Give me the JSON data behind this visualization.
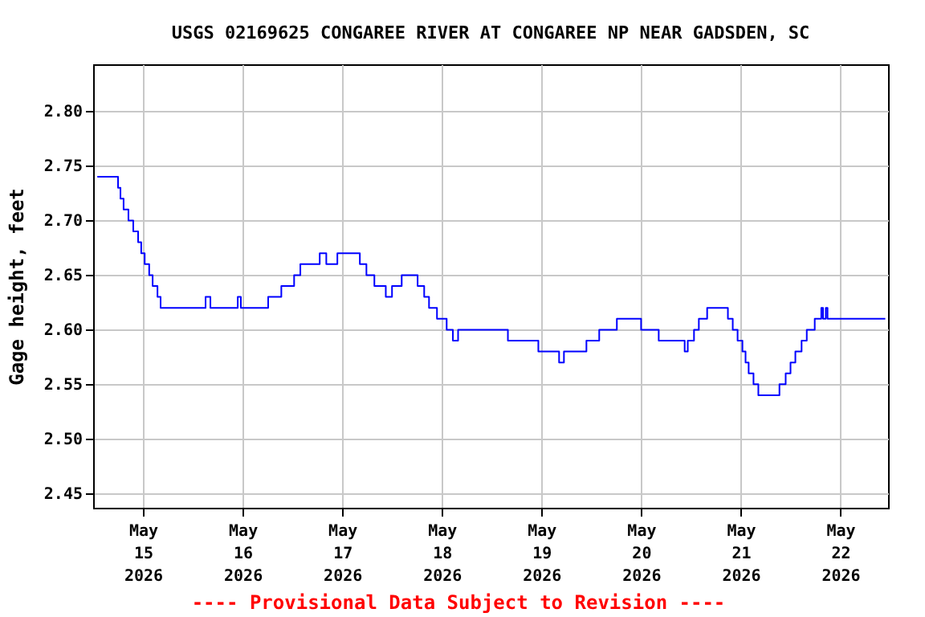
{
  "chart_data": {
    "type": "step",
    "title": "USGS 02169625 CONGAREE RIVER AT CONGAREE NP NEAR GADSDEN, SC",
    "ylabel": "Gage height, feet",
    "annotations": [
      "---- Provisional Data Subject to Revision ----"
    ],
    "x": [
      "2026-05-14T13:00",
      "2026-05-14T18:00",
      "2026-05-14T18:35",
      "2026-05-14T19:20",
      "2026-05-14T20:30",
      "2026-05-14T21:40",
      "2026-05-14T22:50",
      "2026-05-14T23:35",
      "2026-05-15T00:25",
      "2026-05-15T01:30",
      "2026-05-15T02:20",
      "2026-05-15T03:30",
      "2026-05-15T04:15",
      "2026-05-15T05:50",
      "2026-05-15T15:05",
      "2026-05-15T16:15",
      "2026-05-15T22:50",
      "2026-05-15T23:35",
      "2026-05-16T06:10",
      "2026-05-16T09:20",
      "2026-05-16T12:25",
      "2026-05-16T13:55",
      "2026-05-16T18:35",
      "2026-05-16T20:10",
      "2026-05-16T22:50",
      "2026-05-17T04:15",
      "2026-05-17T05:50",
      "2026-05-17T07:45",
      "2026-05-17T10:30",
      "2026-05-17T12:00",
      "2026-05-17T14:20",
      "2026-05-17T18:10",
      "2026-05-17T19:45",
      "2026-05-17T20:55",
      "2026-05-17T22:50",
      "2026-05-18T01:10",
      "2026-05-18T02:40",
      "2026-05-18T03:55",
      "2026-05-18T15:55",
      "2026-05-18T23:15",
      "2026-05-19T04:15",
      "2026-05-19T05:25",
      "2026-05-19T10:50",
      "2026-05-19T13:55",
      "2026-05-19T18:10",
      "2026-05-20T00:00",
      "2026-05-20T04:15",
      "2026-05-20T10:30",
      "2026-05-20T11:15",
      "2026-05-20T12:45",
      "2026-05-20T13:55",
      "2026-05-20T15:55",
      "2026-05-20T20:55",
      "2026-05-20T22:05",
      "2026-05-20T23:15",
      "2026-05-21T00:25",
      "2026-05-21T01:10",
      "2026-05-21T01:55",
      "2026-05-21T03:05",
      "2026-05-21T04:15",
      "2026-05-21T09:20",
      "2026-05-21T10:50",
      "2026-05-21T12:00",
      "2026-05-21T13:10",
      "2026-05-21T14:40",
      "2026-05-21T15:55",
      "2026-05-21T17:50",
      "2026-05-21T19:25",
      "2026-05-21T19:50",
      "2026-05-21T20:30",
      "2026-05-21T20:55",
      "2026-05-22T10:50"
    ],
    "series": [
      {
        "color": "#0000ff",
        "values": [
          2.74,
          2.73,
          2.72,
          2.71,
          2.7,
          2.69,
          2.68,
          2.67,
          2.66,
          2.65,
          2.64,
          2.63,
          2.62,
          2.62,
          2.63,
          2.62,
          2.63,
          2.62,
          2.63,
          2.64,
          2.65,
          2.66,
          2.67,
          2.66,
          2.67,
          2.66,
          2.65,
          2.64,
          2.63,
          2.64,
          2.65,
          2.64,
          2.63,
          2.62,
          2.61,
          2.6,
          2.59,
          2.6,
          2.59,
          2.58,
          2.57,
          2.58,
          2.59,
          2.6,
          2.61,
          2.6,
          2.59,
          2.58,
          2.59,
          2.6,
          2.61,
          2.62,
          2.61,
          2.6,
          2.59,
          2.58,
          2.57,
          2.56,
          2.55,
          2.54,
          2.55,
          2.56,
          2.57,
          2.58,
          2.59,
          2.6,
          2.61,
          2.62,
          2.61,
          2.62,
          2.61,
          2.61
        ]
      }
    ],
    "xlim": [
      "2026-05-14T12:00",
      "2026-05-22T11:30"
    ],
    "xticks": [
      {
        "value": "2026-05-15",
        "label": "May\n15\n2026"
      },
      {
        "value": "2026-05-16",
        "label": "May\n16\n2026"
      },
      {
        "value": "2026-05-17",
        "label": "May\n17\n2026"
      },
      {
        "value": "2026-05-18",
        "label": "May\n18\n2026"
      },
      {
        "value": "2026-05-19",
        "label": "May\n19\n2026"
      },
      {
        "value": "2026-05-20",
        "label": "May\n20\n2026"
      },
      {
        "value": "2026-05-21",
        "label": "May\n21\n2026"
      },
      {
        "value": "2026-05-22",
        "label": "May\n22\n2026"
      }
    ],
    "ylim": [
      2.437,
      2.843
    ],
    "yticks": [
      {
        "value": 2.45,
        "label": "2.45"
      },
      {
        "value": 2.5,
        "label": "2.50"
      },
      {
        "value": 2.55,
        "label": "2.55"
      },
      {
        "value": 2.6,
        "label": "2.60"
      },
      {
        "value": 2.65,
        "label": "2.65"
      },
      {
        "value": 2.7,
        "label": "2.70"
      },
      {
        "value": 2.75,
        "label": "2.75"
      },
      {
        "value": 2.8,
        "label": "2.80"
      }
    ],
    "grid": true
  }
}
